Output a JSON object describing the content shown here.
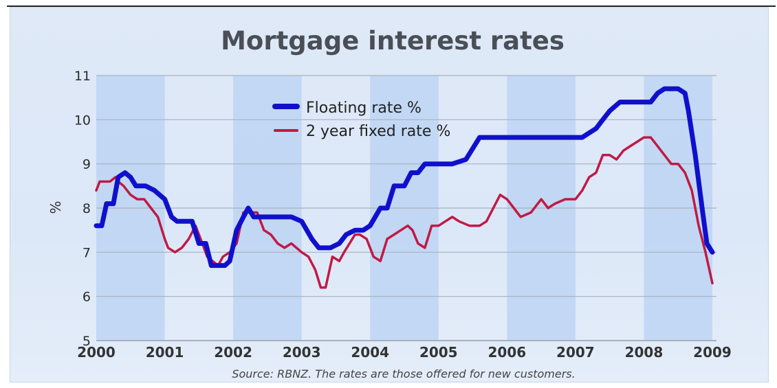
{
  "chart_data": {
    "type": "line",
    "title": "Mortgage interest rates",
    "ylabel": "%",
    "xlabel": "",
    "source": "Source: RBNZ. The rates are those offered for new customers.",
    "xlim": [
      2000,
      2009
    ],
    "ylim": [
      5,
      11
    ],
    "xticks": [
      "2000",
      "2001",
      "2002",
      "2003",
      "2004",
      "2005",
      "2006",
      "2007",
      "2008",
      "2009"
    ],
    "yticks": [
      "5",
      "6",
      "7",
      "8",
      "9",
      "10",
      "11"
    ],
    "grid": true,
    "legend_position": "top-center",
    "series": [
      {
        "name": "Floating rate %",
        "color": "#1010cc",
        "x": [
          2000.0,
          2000.08,
          2000.15,
          2000.25,
          2000.32,
          2000.42,
          2000.5,
          2000.58,
          2000.65,
          2000.72,
          2000.85,
          2001.0,
          2001.1,
          2001.18,
          2001.3,
          2001.4,
          2001.5,
          2001.6,
          2001.68,
          2001.75,
          2001.82,
          2001.88,
          2001.95,
          2002.05,
          2002.15,
          2002.22,
          2002.3,
          2002.4,
          2002.5,
          2002.6,
          2002.7,
          2002.85,
          2003.0,
          2003.15,
          2003.25,
          2003.35,
          2003.42,
          2003.55,
          2003.65,
          2003.78,
          2003.9,
          2004.0,
          2004.15,
          2004.25,
          2004.35,
          2004.5,
          2004.6,
          2004.7,
          2004.8,
          2004.95,
          2005.05,
          2005.2,
          2005.4,
          2005.6,
          2005.75,
          2005.85,
          2005.95,
          2006.0,
          2006.2,
          2006.5,
          2006.8,
          2007.0,
          2007.1,
          2007.2,
          2007.3,
          2007.4,
          2007.5,
          2007.65,
          2007.8,
          2008.0,
          2008.1,
          2008.2,
          2008.3,
          2008.4,
          2008.5,
          2008.6,
          2008.65,
          2008.75,
          2008.85,
          2008.92,
          2009.0
        ],
        "values": [
          7.6,
          7.6,
          8.1,
          8.1,
          8.7,
          8.8,
          8.7,
          8.5,
          8.5,
          8.5,
          8.4,
          8.2,
          7.8,
          7.7,
          7.7,
          7.7,
          7.2,
          7.2,
          6.7,
          6.7,
          6.7,
          6.7,
          6.8,
          7.5,
          7.8,
          8.0,
          7.8,
          7.8,
          7.8,
          7.8,
          7.8,
          7.8,
          7.7,
          7.3,
          7.1,
          7.1,
          7.1,
          7.2,
          7.4,
          7.5,
          7.5,
          7.6,
          8.0,
          8.0,
          8.5,
          8.5,
          8.8,
          8.8,
          9.0,
          9.0,
          9.0,
          9.0,
          9.1,
          9.6,
          9.6,
          9.6,
          9.6,
          9.6,
          9.6,
          9.6,
          9.6,
          9.6,
          9.6,
          9.7,
          9.8,
          10.0,
          10.2,
          10.4,
          10.4,
          10.4,
          10.4,
          10.6,
          10.7,
          10.7,
          10.7,
          10.6,
          10.2,
          9.2,
          8.0,
          7.2,
          7.0
        ]
      },
      {
        "name": "2 year fixed rate %",
        "color": "#c01a44",
        "x": [
          2000.0,
          2000.05,
          2000.12,
          2000.2,
          2000.28,
          2000.32,
          2000.4,
          2000.5,
          2000.6,
          2000.7,
          2000.8,
          2000.9,
          2001.0,
          2001.05,
          2001.15,
          2001.25,
          2001.35,
          2001.45,
          2001.55,
          2001.62,
          2001.7,
          2001.78,
          2001.85,
          2001.95,
          2002.05,
          2002.15,
          2002.22,
          2002.35,
          2002.45,
          2002.55,
          2002.65,
          2002.75,
          2002.85,
          2003.0,
          2003.1,
          2003.2,
          2003.28,
          2003.35,
          2003.45,
          2003.55,
          2003.62,
          2003.7,
          2003.78,
          2003.85,
          2003.95,
          2004.05,
          2004.15,
          2004.25,
          2004.35,
          2004.45,
          2004.55,
          2004.62,
          2004.7,
          2004.8,
          2004.9,
          2005.0,
          2005.1,
          2005.2,
          2005.3,
          2005.45,
          2005.6,
          2005.7,
          2005.8,
          2005.9,
          2006.0,
          2006.1,
          2006.2,
          2006.35,
          2006.5,
          2006.6,
          2006.7,
          2006.85,
          2007.0,
          2007.1,
          2007.2,
          2007.3,
          2007.4,
          2007.5,
          2007.6,
          2007.7,
          2007.8,
          2007.9,
          2008.0,
          2008.1,
          2008.2,
          2008.3,
          2008.4,
          2008.5,
          2008.6,
          2008.7,
          2008.8,
          2008.9,
          2009.0
        ],
        "values": [
          8.4,
          8.6,
          8.6,
          8.6,
          8.7,
          8.6,
          8.5,
          8.3,
          8.2,
          8.2,
          8.0,
          7.8,
          7.3,
          7.1,
          7.0,
          7.1,
          7.3,
          7.6,
          7.2,
          6.9,
          6.8,
          6.7,
          6.9,
          7.0,
          7.2,
          7.9,
          7.9,
          7.9,
          7.5,
          7.4,
          7.2,
          7.1,
          7.2,
          7.0,
          6.9,
          6.6,
          6.2,
          6.2,
          6.9,
          6.8,
          7.0,
          7.2,
          7.4,
          7.4,
          7.3,
          6.9,
          6.8,
          7.3,
          7.4,
          7.5,
          7.6,
          7.5,
          7.2,
          7.1,
          7.6,
          7.6,
          7.7,
          7.8,
          7.7,
          7.6,
          7.6,
          7.7,
          8.0,
          8.3,
          8.2,
          8.0,
          7.8,
          7.9,
          8.2,
          8.0,
          8.1,
          8.2,
          8.2,
          8.4,
          8.7,
          8.8,
          9.2,
          9.2,
          9.1,
          9.3,
          9.4,
          9.5,
          9.6,
          9.6,
          9.4,
          9.2,
          9.0,
          9.0,
          8.8,
          8.4,
          7.6,
          7.0,
          6.3
        ]
      }
    ]
  }
}
